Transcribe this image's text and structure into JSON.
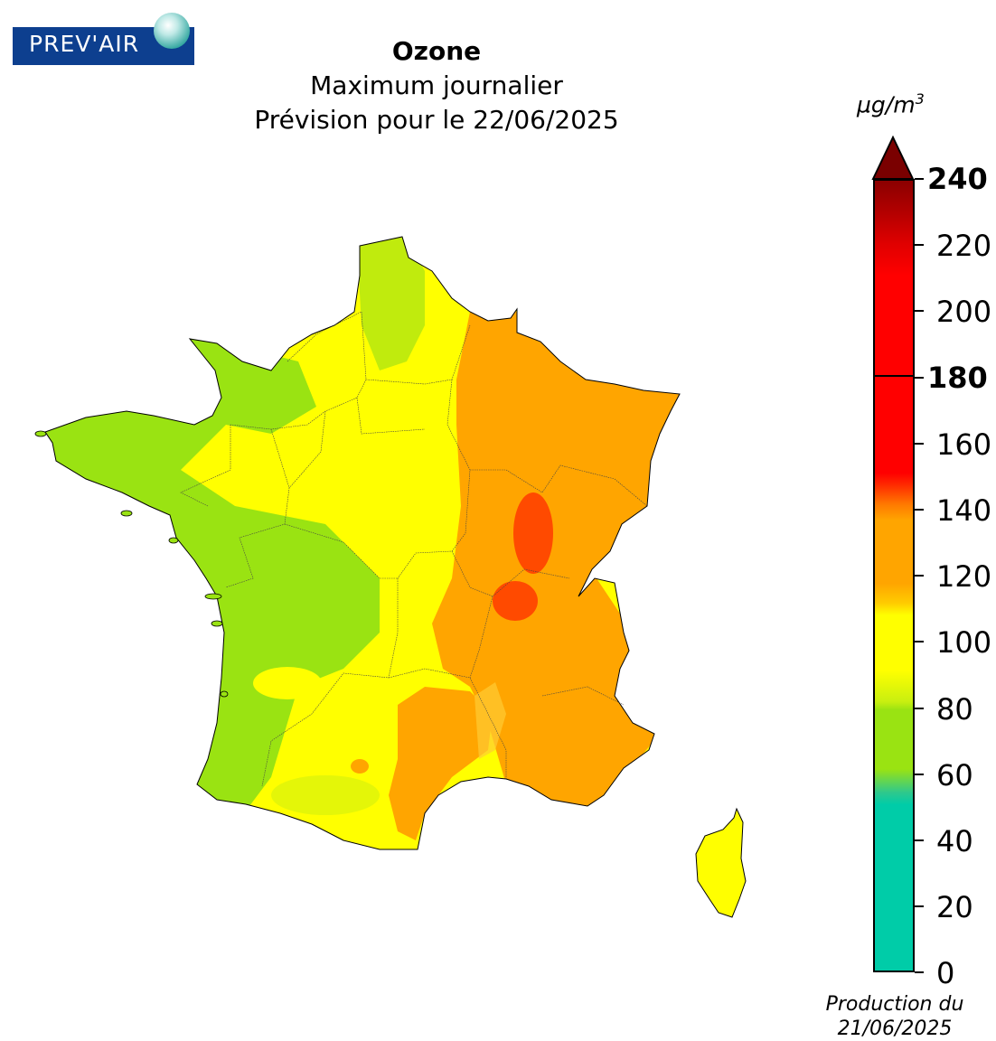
{
  "logo": {
    "text": "PREV'AIR"
  },
  "title": "Ozone",
  "subtitle_1": "Maximum journalier",
  "subtitle_2": "Prévision pour le 22/06/2025",
  "unit": {
    "base": "µg/m",
    "exponent": "3"
  },
  "colorbar": {
    "min": 0,
    "max": 240,
    "ticks": [
      "0",
      "20",
      "40",
      "60",
      "80",
      "100",
      "120",
      "140",
      "160",
      "180",
      "200",
      "220",
      "240"
    ],
    "bold_ticks": [
      "180",
      "240"
    ],
    "threshold": 180,
    "extend": "max",
    "colors": {
      "low": "#00cca8",
      "moderate": "#9ae312",
      "medium": "#ffff00",
      "high": "#ffa500",
      "very_high": "#ff0000",
      "extreme": "#8b0000"
    }
  },
  "production": {
    "line1": "Production du",
    "line2": "21/06/2025"
  }
}
